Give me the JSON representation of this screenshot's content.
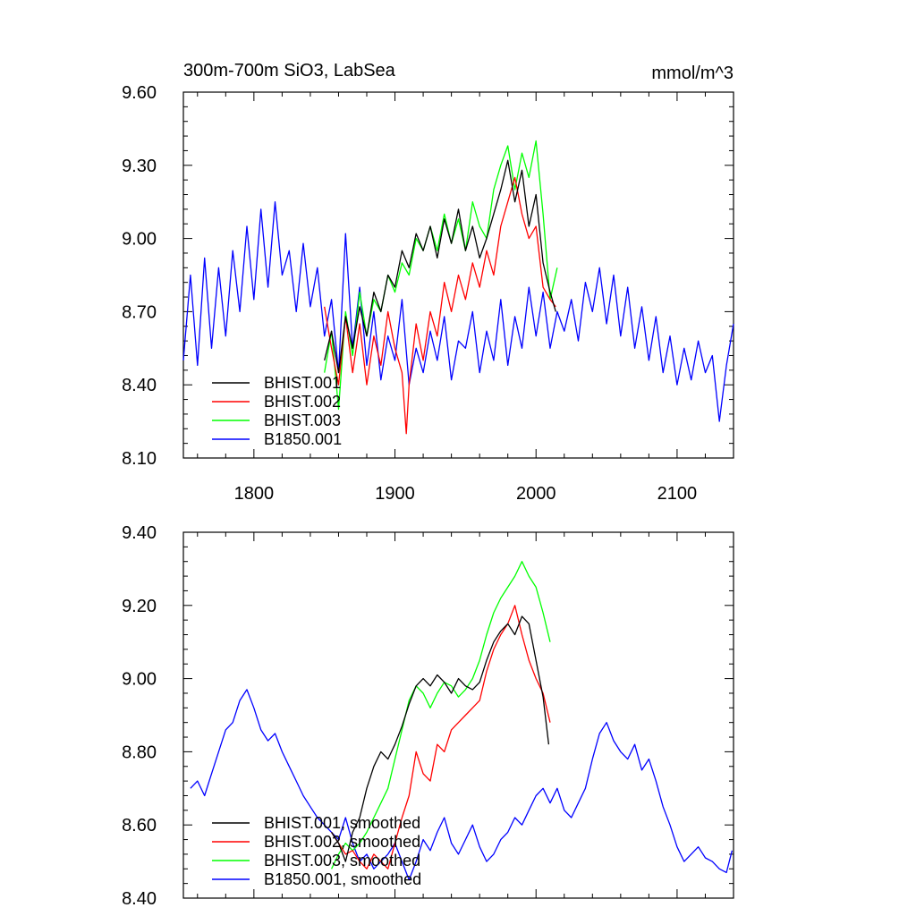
{
  "chart_data": [
    {
      "type": "line",
      "title": "300m-700m SiO3, LabSea",
      "units_label": "mmol/m^3",
      "xlim": [
        1750,
        2140
      ],
      "ylim": [
        8.1,
        9.6
      ],
      "xticks": [
        1800,
        1900,
        2000,
        2100
      ],
      "xtick_labels": [
        "1800",
        "1900",
        "2000",
        "2100"
      ],
      "yticks": [
        8.1,
        8.4,
        8.7,
        9.0,
        9.3,
        9.6
      ],
      "ytick_labels": [
        "8.10",
        "8.40",
        "8.70",
        "9.00",
        "9.30",
        "9.60"
      ],
      "legend_position": "lower-left",
      "series": [
        {
          "name": "BHIST.001",
          "color": "#000000",
          "x": [
            1850,
            1855,
            1860,
            1865,
            1870,
            1875,
            1880,
            1885,
            1890,
            1895,
            1900,
            1905,
            1910,
            1915,
            1920,
            1925,
            1930,
            1935,
            1940,
            1945,
            1950,
            1955,
            1960,
            1965,
            1970,
            1975,
            1980,
            1985,
            1990,
            1995,
            2000,
            2005,
            2010,
            2014
          ],
          "y": [
            8.5,
            8.62,
            8.45,
            8.68,
            8.55,
            8.72,
            8.6,
            8.78,
            8.7,
            8.85,
            8.8,
            8.95,
            8.88,
            9.02,
            8.95,
            9.05,
            8.92,
            9.08,
            8.98,
            9.12,
            8.95,
            9.05,
            8.92,
            9.0,
            9.1,
            9.2,
            9.32,
            9.15,
            9.28,
            9.05,
            9.18,
            8.9,
            8.78,
            8.7
          ]
        },
        {
          "name": "BHIST.002",
          "color": "#ff0000",
          "x": [
            1850,
            1855,
            1860,
            1865,
            1870,
            1875,
            1880,
            1885,
            1890,
            1895,
            1900,
            1905,
            1908,
            1910,
            1915,
            1920,
            1925,
            1930,
            1935,
            1940,
            1945,
            1950,
            1955,
            1960,
            1965,
            1970,
            1975,
            1980,
            1985,
            1990,
            1995,
            2000,
            2005,
            2010,
            2014
          ],
          "y": [
            8.72,
            8.55,
            8.4,
            8.68,
            8.45,
            8.65,
            8.4,
            8.6,
            8.48,
            8.7,
            8.55,
            8.45,
            8.2,
            8.4,
            8.65,
            8.5,
            8.7,
            8.6,
            8.82,
            8.7,
            8.85,
            8.75,
            8.9,
            8.8,
            8.95,
            8.85,
            9.05,
            9.15,
            9.25,
            9.1,
            9.0,
            9.05,
            8.8,
            8.75,
            8.72
          ]
        },
        {
          "name": "BHIST.003",
          "color": "#00ff00",
          "x": [
            1850,
            1855,
            1860,
            1865,
            1870,
            1875,
            1880,
            1885,
            1890,
            1895,
            1900,
            1905,
            1910,
            1915,
            1920,
            1925,
            1930,
            1935,
            1940,
            1945,
            1950,
            1955,
            1960,
            1965,
            1970,
            1975,
            1980,
            1985,
            1990,
            1995,
            2000,
            2005,
            2010,
            2015
          ],
          "y": [
            8.45,
            8.62,
            8.3,
            8.7,
            8.52,
            8.78,
            8.6,
            8.75,
            8.7,
            8.85,
            8.78,
            8.9,
            8.85,
            9.0,
            8.95,
            9.05,
            8.95,
            9.1,
            8.98,
            9.08,
            8.95,
            9.15,
            9.05,
            9.0,
            9.2,
            9.3,
            9.38,
            9.2,
            9.35,
            9.25,
            9.4,
            9.1,
            8.75,
            8.88
          ]
        },
        {
          "name": "B1850.001",
          "color": "#0000ff",
          "x": [
            1750,
            1755,
            1760,
            1765,
            1770,
            1775,
            1780,
            1785,
            1790,
            1795,
            1800,
            1805,
            1810,
            1815,
            1820,
            1825,
            1830,
            1835,
            1840,
            1845,
            1850,
            1855,
            1860,
            1865,
            1870,
            1875,
            1880,
            1885,
            1890,
            1895,
            1900,
            1905,
            1910,
            1915,
            1920,
            1925,
            1930,
            1935,
            1940,
            1945,
            1950,
            1955,
            1960,
            1965,
            1970,
            1975,
            1980,
            1985,
            1990,
            1995,
            2000,
            2005,
            2010,
            2015,
            2020,
            2025,
            2030,
            2035,
            2040,
            2045,
            2050,
            2055,
            2060,
            2065,
            2070,
            2075,
            2080,
            2085,
            2090,
            2095,
            2100,
            2105,
            2110,
            2115,
            2120,
            2125,
            2130,
            2135,
            2140
          ],
          "y": [
            8.5,
            8.85,
            8.48,
            8.92,
            8.55,
            8.88,
            8.6,
            8.95,
            8.7,
            9.05,
            8.75,
            9.12,
            8.8,
            9.15,
            8.85,
            8.95,
            8.7,
            8.98,
            8.72,
            8.88,
            8.6,
            8.75,
            8.45,
            9.02,
            8.55,
            8.8,
            8.48,
            8.7,
            8.42,
            8.6,
            8.5,
            8.75,
            8.4,
            8.55,
            8.45,
            8.62,
            8.5,
            8.68,
            8.42,
            8.58,
            8.55,
            8.7,
            8.45,
            8.62,
            8.5,
            8.75,
            8.48,
            8.68,
            8.55,
            8.8,
            8.6,
            8.78,
            8.55,
            8.7,
            8.62,
            8.75,
            8.58,
            8.82,
            8.7,
            8.88,
            8.65,
            8.85,
            8.6,
            8.8,
            8.55,
            8.72,
            8.5,
            8.68,
            8.45,
            8.6,
            8.4,
            8.55,
            8.42,
            8.58,
            8.45,
            8.52,
            8.25,
            8.48,
            8.65
          ]
        }
      ]
    },
    {
      "type": "line",
      "xlim": [
        1750,
        2140
      ],
      "ylim": [
        8.4,
        9.4
      ],
      "xticks": [
        1800,
        1900,
        2000,
        2100
      ],
      "yticks": [
        8.4,
        8.6,
        8.8,
        9.0,
        9.2,
        9.4
      ],
      "ytick_labels": [
        "8.40",
        "8.60",
        "8.80",
        "9.00",
        "9.20",
        "9.40"
      ],
      "legend_position": "lower-left",
      "series": [
        {
          "name": "BHIST.001, smoothed",
          "color": "#000000",
          "x": [
            1855,
            1860,
            1865,
            1870,
            1875,
            1880,
            1885,
            1890,
            1895,
            1900,
            1905,
            1910,
            1915,
            1920,
            1925,
            1930,
            1935,
            1940,
            1945,
            1950,
            1955,
            1960,
            1965,
            1970,
            1975,
            1980,
            1985,
            1990,
            1995,
            2000,
            2005,
            2009
          ],
          "y": [
            8.58,
            8.55,
            8.5,
            8.58,
            8.62,
            8.7,
            8.76,
            8.8,
            8.78,
            8.82,
            8.87,
            8.93,
            8.98,
            9.0,
            8.98,
            9.01,
            8.99,
            8.96,
            9.0,
            8.98,
            8.97,
            8.99,
            9.05,
            9.1,
            9.13,
            9.15,
            9.12,
            9.17,
            9.15,
            9.05,
            8.95,
            8.82
          ]
        },
        {
          "name": "BHIST.002, smoothed",
          "color": "#ff0000",
          "x": [
            1855,
            1860,
            1865,
            1870,
            1875,
            1880,
            1885,
            1890,
            1895,
            1900,
            1905,
            1910,
            1915,
            1920,
            1925,
            1930,
            1935,
            1940,
            1945,
            1950,
            1955,
            1960,
            1965,
            1970,
            1975,
            1980,
            1985,
            1990,
            1995,
            2000,
            2005,
            2010
          ],
          "y": [
            8.58,
            8.55,
            8.52,
            8.53,
            8.5,
            8.48,
            8.52,
            8.5,
            8.48,
            8.55,
            8.62,
            8.68,
            8.8,
            8.74,
            8.72,
            8.82,
            8.8,
            8.86,
            8.88,
            8.9,
            8.92,
            8.94,
            9.02,
            9.08,
            9.12,
            9.15,
            9.2,
            9.12,
            9.05,
            9.0,
            8.96,
            8.88
          ]
        },
        {
          "name": "BHIST.003, smoothed",
          "color": "#00ff00",
          "x": [
            1855,
            1860,
            1865,
            1870,
            1875,
            1880,
            1885,
            1890,
            1895,
            1900,
            1905,
            1910,
            1915,
            1920,
            1925,
            1930,
            1935,
            1940,
            1945,
            1950,
            1955,
            1960,
            1965,
            1970,
            1975,
            1980,
            1985,
            1990,
            1995,
            2000,
            2005,
            2010
          ],
          "y": [
            8.48,
            8.52,
            8.55,
            8.53,
            8.55,
            8.58,
            8.62,
            8.66,
            8.7,
            8.78,
            8.86,
            8.94,
            8.98,
            8.96,
            8.92,
            8.96,
            8.99,
            8.98,
            8.95,
            8.97,
            9.0,
            9.05,
            9.12,
            9.18,
            9.22,
            9.25,
            9.28,
            9.32,
            9.28,
            9.25,
            9.18,
            9.1
          ]
        },
        {
          "name": "B1850.001, smoothed",
          "color": "#0000ff",
          "x": [
            1755,
            1760,
            1765,
            1770,
            1775,
            1780,
            1785,
            1790,
            1795,
            1800,
            1805,
            1810,
            1815,
            1820,
            1825,
            1830,
            1835,
            1840,
            1845,
            1850,
            1855,
            1860,
            1865,
            1870,
            1875,
            1880,
            1885,
            1890,
            1895,
            1900,
            1905,
            1910,
            1915,
            1920,
            1925,
            1930,
            1935,
            1940,
            1945,
            1950,
            1955,
            1960,
            1965,
            1970,
            1975,
            1980,
            1985,
            1990,
            1995,
            2000,
            2005,
            2010,
            2015,
            2020,
            2025,
            2030,
            2035,
            2040,
            2045,
            2050,
            2055,
            2060,
            2065,
            2070,
            2075,
            2080,
            2085,
            2090,
            2095,
            2100,
            2105,
            2110,
            2115,
            2120,
            2125,
            2130,
            2135,
            2139
          ],
          "y": [
            8.7,
            8.72,
            8.68,
            8.74,
            8.8,
            8.86,
            8.88,
            8.94,
            8.97,
            8.92,
            8.86,
            8.83,
            8.85,
            8.8,
            8.76,
            8.72,
            8.68,
            8.65,
            8.62,
            8.6,
            8.58,
            8.56,
            8.62,
            8.55,
            8.5,
            8.52,
            8.48,
            8.5,
            8.52,
            8.55,
            8.5,
            8.45,
            8.5,
            8.56,
            8.53,
            8.58,
            8.62,
            8.55,
            8.52,
            8.56,
            8.6,
            8.54,
            8.5,
            8.52,
            8.56,
            8.58,
            8.62,
            8.6,
            8.64,
            8.68,
            8.7,
            8.66,
            8.7,
            8.64,
            8.62,
            8.66,
            8.7,
            8.78,
            8.85,
            8.88,
            8.83,
            8.8,
            8.78,
            8.82,
            8.75,
            8.78,
            8.72,
            8.65,
            8.6,
            8.54,
            8.5,
            8.52,
            8.54,
            8.51,
            8.5,
            8.48,
            8.47,
            8.53
          ]
        }
      ]
    }
  ]
}
